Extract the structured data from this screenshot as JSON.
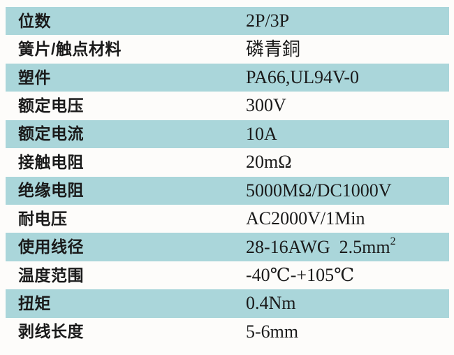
{
  "table": {
    "rows": [
      {
        "label": "位数",
        "value": "2P/3P"
      },
      {
        "label": "簧片/触点材料",
        "value": "磷青銅"
      },
      {
        "label": "塑件",
        "value": "PA66,UL94V-0"
      },
      {
        "label": "额定电压",
        "value": "300V"
      },
      {
        "label": "额定电流",
        "value": "10A"
      },
      {
        "label": "接触电阻",
        "value": "20mΩ"
      },
      {
        "label": "绝缘电阻",
        "value": "5000MΩ/DC1000V"
      },
      {
        "label": "耐电压",
        "value": "AC2000V/1Min"
      },
      {
        "label": "使用线径",
        "value": "28-16AWG  2.5mm",
        "value_sup": "2"
      },
      {
        "label": "温度范围",
        "value": "-40℃-+105℃"
      },
      {
        "label": "扭矩",
        "value": "0.4Nm"
      },
      {
        "label": "剥线长度",
        "value": "5-6mm"
      }
    ]
  },
  "colors": {
    "row_highlight": "#aad6da",
    "page_background": "#fdfcfa",
    "text": "#1a1a1a"
  }
}
